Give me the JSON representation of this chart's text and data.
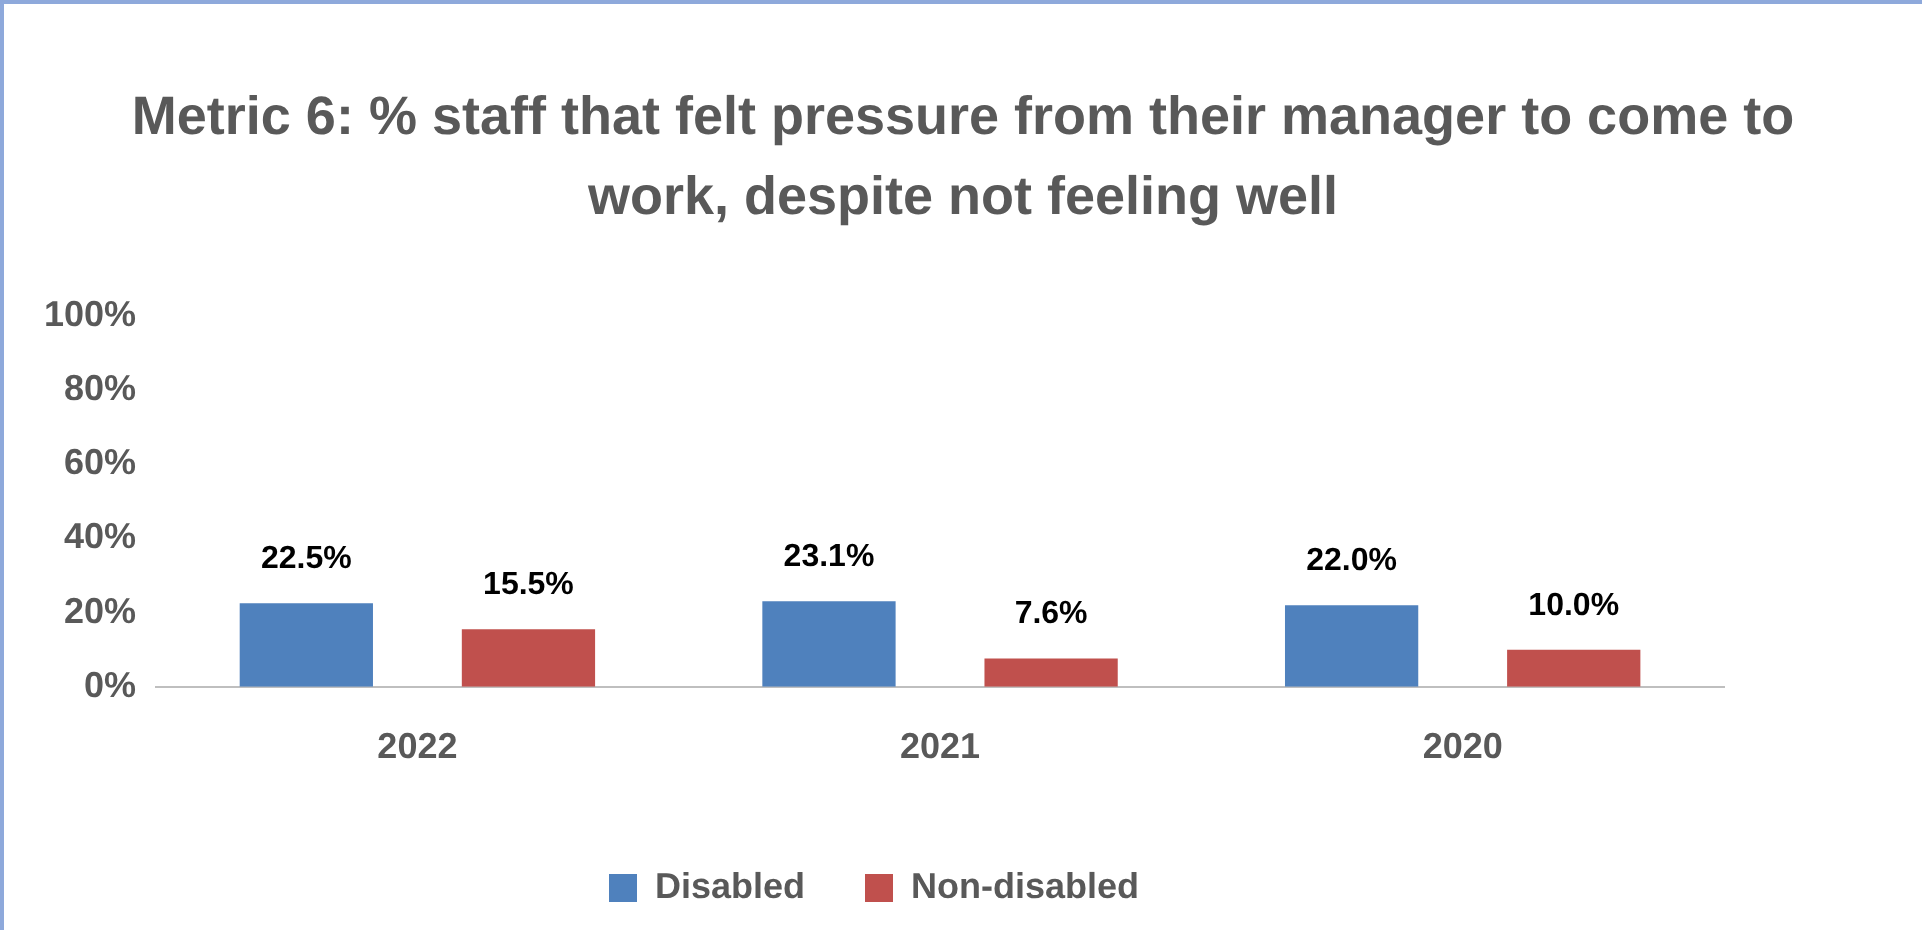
{
  "chart_data": {
    "type": "bar",
    "title": "Metric 6: % staff that felt pressure from their manager to come to work, despite not feeling well",
    "categories": [
      "2022",
      "2021",
      "2020"
    ],
    "series": [
      {
        "name": "Disabled",
        "color": "#4f81bd",
        "values": [
          22.5,
          23.1,
          22.0
        ],
        "value_labels": [
          "22.5%",
          "23.1%",
          "22.0%"
        ]
      },
      {
        "name": "Non-disabled",
        "color": "#c0504d",
        "values": [
          15.5,
          7.6,
          10.0
        ],
        "value_labels": [
          "15.5%",
          "7.6%",
          "10.0%"
        ]
      }
    ],
    "ylim": [
      0,
      100
    ],
    "yticks": [
      {
        "value": 0,
        "label": "0%"
      },
      {
        "value": 20,
        "label": "20%"
      },
      {
        "value": 40,
        "label": "40%"
      },
      {
        "value": 60,
        "label": "60%"
      },
      {
        "value": 80,
        "label": "80%"
      },
      {
        "value": 100,
        "label": "100%"
      }
    ],
    "grid": false,
    "legend": "bottom"
  }
}
